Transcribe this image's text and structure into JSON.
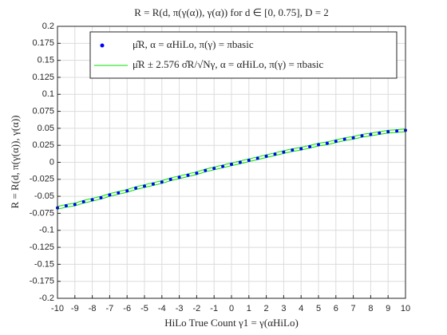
{
  "chart_data": {
    "type": "scatter",
    "title": "R = R(d, π(γ(α)), γ(α)) for d ∈ [0, 0.75], D = 2",
    "x_label": "HiLo True Count γ1 = γ(αHiLo)",
    "y_label": "R = R(d, π(γ(α)), γ(α))",
    "x": [
      -10,
      -9.5,
      -9,
      -8.5,
      -8,
      -7.5,
      -7,
      -6.5,
      -6,
      -5.5,
      -5,
      -4.5,
      -4,
      -3.5,
      -3,
      -2.5,
      -2,
      -1.5,
      -1,
      -0.5,
      0,
      0.5,
      1,
      1.5,
      2,
      2.5,
      3,
      3.5,
      4,
      4.5,
      5,
      5.5,
      6,
      6.5,
      7,
      7.5,
      8,
      8.5,
      9,
      9.5,
      10
    ],
    "series": [
      {
        "name": "μ̂R, α = αHiLo, π(γ) = πbasic",
        "color": "#0000ff",
        "values": [
          -0.067,
          -0.064,
          -0.062,
          -0.058,
          -0.055,
          -0.052,
          -0.048,
          -0.045,
          -0.042,
          -0.038,
          -0.035,
          -0.032,
          -0.029,
          -0.025,
          -0.022,
          -0.019,
          -0.016,
          -0.012,
          -0.009,
          -0.006,
          -0.003,
          0.0,
          0.003,
          0.006,
          0.009,
          0.012,
          0.015,
          0.018,
          0.02,
          0.023,
          0.026,
          0.028,
          0.031,
          0.034,
          0.036,
          0.039,
          0.041,
          0.043,
          0.045,
          0.046,
          0.047
        ]
      },
      {
        "name": "μ̂R ± 2.576 σ̂R/√Nγ, α = αHiLo, π(γ) = πbasic",
        "color": "#00e000",
        "lower": [
          -0.069,
          -0.066,
          -0.064,
          -0.06,
          -0.057,
          -0.054,
          -0.05,
          -0.047,
          -0.044,
          -0.04,
          -0.037,
          -0.034,
          -0.031,
          -0.027,
          -0.024,
          -0.021,
          -0.018,
          -0.014,
          -0.011,
          -0.008,
          -0.005,
          -0.002,
          0.001,
          0.004,
          0.007,
          0.01,
          0.013,
          0.016,
          0.018,
          0.021,
          0.024,
          0.026,
          0.029,
          0.032,
          0.034,
          0.037,
          0.039,
          0.041,
          0.043,
          0.044,
          0.045
        ],
        "upper": [
          -0.065,
          -0.062,
          -0.06,
          -0.056,
          -0.053,
          -0.05,
          -0.046,
          -0.043,
          -0.04,
          -0.036,
          -0.033,
          -0.03,
          -0.027,
          -0.023,
          -0.02,
          -0.017,
          -0.014,
          -0.01,
          -0.007,
          -0.004,
          -0.001,
          0.002,
          0.005,
          0.008,
          0.011,
          0.014,
          0.017,
          0.02,
          0.022,
          0.025,
          0.028,
          0.03,
          0.033,
          0.036,
          0.038,
          0.041,
          0.043,
          0.045,
          0.047,
          0.048,
          0.049
        ]
      }
    ],
    "xlim": [
      -10,
      10
    ],
    "xticks": [
      -10,
      -9,
      -8,
      -7,
      -6,
      -5,
      -4,
      -3,
      -2,
      -1,
      0,
      1,
      2,
      3,
      4,
      5,
      6,
      7,
      8,
      9,
      10
    ],
    "ylim": [
      -0.2,
      0.2
    ],
    "yticks": [
      -0.2,
      -0.175,
      -0.15,
      -0.125,
      -0.1,
      -0.075,
      -0.05,
      -0.025,
      0,
      0.025,
      0.05,
      0.075,
      0.1,
      0.125,
      0.15,
      0.175,
      0.2
    ],
    "grid": true,
    "legend": "top"
  }
}
